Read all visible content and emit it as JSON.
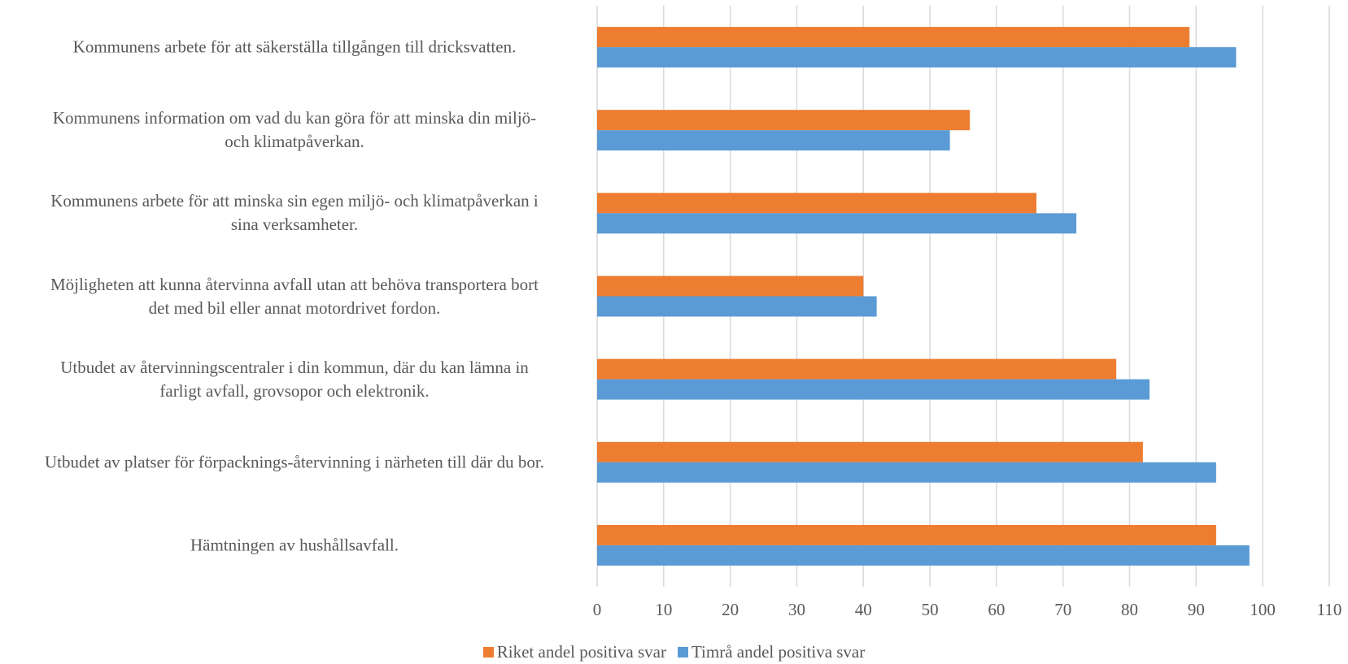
{
  "chart_data": {
    "type": "bar",
    "orientation": "horizontal",
    "categories": [
      "Kommunens arbete för att säkerställa tillgången till dricksvatten.",
      "Kommunens information om vad du kan  göra för att minska din miljö-\noch klimatpåverkan.",
      "Kommunens arbete för att minska sin egen miljö- och klimatpåverkan i\nsina verksamheter.",
      "Möjligheten att kunna återvinna avfall utan att behöva transportera bort\ndet med bil eller annat motordrivet fordon.",
      "Utbudet av återvinningscentraler i din kommun, där du kan lämna in\nfarligt avfall, grovsopor och elektronik.",
      "Utbudet av platser för förpacknings-återvinning i närheten till där du bor.",
      "Hämtningen av hushållsavfall."
    ],
    "series": [
      {
        "name": "Riket andel positiva svar",
        "color": "#ed7d31",
        "values": [
          89,
          56,
          66,
          40,
          78,
          82,
          93
        ]
      },
      {
        "name": "Timrå andel positiva svar",
        "color": "#5b9bd5",
        "values": [
          96,
          53,
          72,
          42,
          83,
          93,
          98
        ]
      }
    ],
    "xlim": [
      0,
      110
    ],
    "xticks": [
      0,
      10,
      20,
      30,
      40,
      50,
      60,
      70,
      80,
      90,
      100,
      110
    ],
    "grid": true,
    "legend": "bottom"
  }
}
